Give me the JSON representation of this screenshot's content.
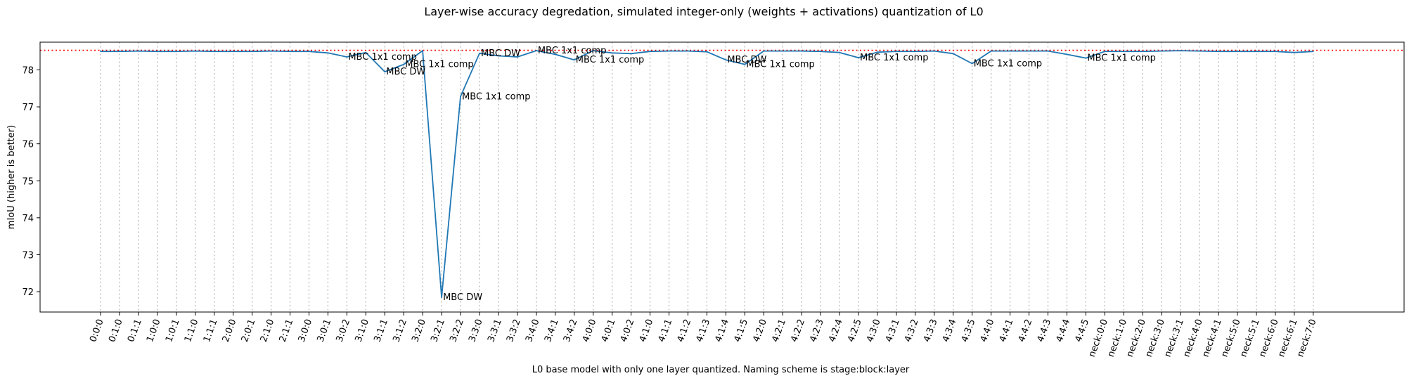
{
  "chart_data": {
    "type": "line",
    "title": "Layer-wise accuracy degredation, simulated integer-only (weights + activations) quantization of L0",
    "xlabel": "L0 base model with only one layer quantized. Naming scheme is stage:block:layer",
    "ylabel": "mIoU (higher is better)",
    "ylim": [
      71.45,
      78.75
    ],
    "yticks": [
      72,
      73,
      74,
      75,
      76,
      77,
      78
    ],
    "categories": [
      "0:0:0",
      "0:1:0",
      "0:1:1",
      "1:0:0",
      "1:0:1",
      "1:1:0",
      "1:1:1",
      "2:0:0",
      "2:0:1",
      "2:1:0",
      "2:1:1",
      "3:0:0",
      "3:0:1",
      "3:0:2",
      "3:1:0",
      "3:1:1",
      "3:1:2",
      "3:2:0",
      "3:2:1",
      "3:2:2",
      "3:3:0",
      "3:3:1",
      "3:3:2",
      "3:4:0",
      "3:4:1",
      "3:4:2",
      "4:0:0",
      "4:0:1",
      "4:0:2",
      "4:1:0",
      "4:1:1",
      "4:1:2",
      "4:1:3",
      "4:1:4",
      "4:1:5",
      "4:2:0",
      "4:2:1",
      "4:2:2",
      "4:2:3",
      "4:2:4",
      "4:2:5",
      "4:3:0",
      "4:3:1",
      "4:3:2",
      "4:3:3",
      "4:3:4",
      "4:3:5",
      "4:4:0",
      "4:4:1",
      "4:4:2",
      "4:4:3",
      "4:4:4",
      "4:4:5",
      "neck:0:0",
      "neck:1:0",
      "neck:2:0",
      "neck:3:0",
      "neck:3:1",
      "neck:4:0",
      "neck:4:1",
      "neck:5:0",
      "neck:5:1",
      "neck:6:0",
      "neck:6:1",
      "neck:7:0"
    ],
    "series": [
      {
        "color": "#1f77b4",
        "values": [
          78.5,
          78.5,
          78.51,
          78.5,
          78.5,
          78.51,
          78.5,
          78.5,
          78.5,
          78.51,
          78.5,
          78.5,
          78.46,
          78.35,
          78.47,
          77.95,
          78.15,
          78.52,
          71.85,
          77.28,
          78.45,
          78.38,
          78.35,
          78.52,
          78.42,
          78.27,
          78.52,
          78.46,
          78.44,
          78.5,
          78.51,
          78.51,
          78.49,
          78.27,
          78.15,
          78.51,
          78.51,
          78.51,
          78.5,
          78.47,
          78.33,
          78.48,
          78.5,
          78.5,
          78.51,
          78.44,
          78.17,
          78.51,
          78.51,
          78.51,
          78.51,
          78.42,
          78.32,
          78.5,
          78.5,
          78.5,
          78.51,
          78.52,
          78.51,
          78.5,
          78.5,
          78.5,
          78.5,
          78.47,
          78.5
        ]
      }
    ],
    "reference_line": {
      "value": 78.53,
      "color": "#ff0000",
      "style": "dotted"
    },
    "grid": "vertical dotted lines at each category",
    "annotations": [
      {
        "index": 13,
        "text": "MBC 1x1 comp"
      },
      {
        "index": 15,
        "text": "MBC DW"
      },
      {
        "index": 16,
        "text": "MBC 1x1 comp"
      },
      {
        "index": 18,
        "text": "MBC DW"
      },
      {
        "index": 19,
        "text": "MBC 1x1 comp"
      },
      {
        "index": 20,
        "text": "MBC DW"
      },
      {
        "index": 23,
        "text": "MBC 1x1 comp"
      },
      {
        "index": 25,
        "text": "MBC 1x1 comp"
      },
      {
        "index": 33,
        "text": "MBC DW"
      },
      {
        "index": 34,
        "text": "MBC 1x1 comp"
      },
      {
        "index": 40,
        "text": "MBC 1x1 comp"
      },
      {
        "index": 46,
        "text": "MBC 1x1 comp"
      },
      {
        "index": 52,
        "text": "MBC 1x1 comp"
      }
    ]
  }
}
